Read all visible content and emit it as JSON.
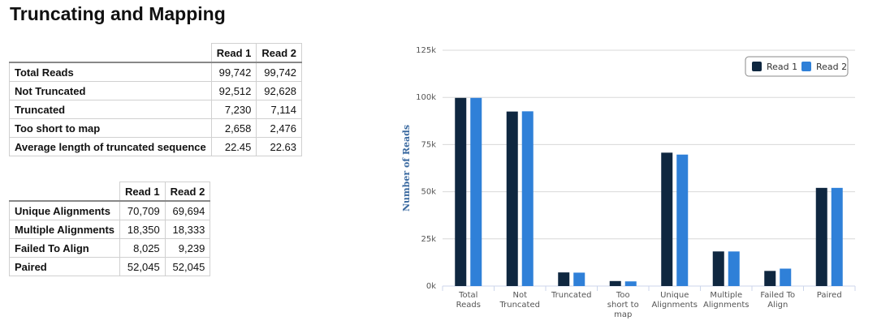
{
  "title": "Truncating and Mapping",
  "table1": {
    "headers": [
      "",
      "Read 1",
      "Read 2"
    ],
    "rows": [
      {
        "label": "Total Reads",
        "r1": "99,742",
        "r2": "99,742"
      },
      {
        "label": "Not Truncated",
        "r1": "92,512",
        "r2": "92,628"
      },
      {
        "label": "Truncated",
        "r1": "7,230",
        "r2": "7,114"
      },
      {
        "label": "Too short to map",
        "r1": "2,658",
        "r2": "2,476"
      },
      {
        "label": "Average length of truncated sequence",
        "r1": "22.45",
        "r2": "22.63"
      }
    ]
  },
  "table2": {
    "headers": [
      "",
      "Read 1",
      "Read 2"
    ],
    "rows": [
      {
        "label": "Unique Alignments",
        "r1": "70,709",
        "r2": "69,694"
      },
      {
        "label": "Multiple Alignments",
        "r1": "18,350",
        "r2": "18,333"
      },
      {
        "label": "Failed To Align",
        "r1": "8,025",
        "r2": "9,239"
      },
      {
        "label": "Paired",
        "r1": "52,045",
        "r2": "52,045"
      }
    ]
  },
  "chart_data": {
    "type": "bar",
    "title": "",
    "xlabel": "",
    "ylabel": "Number of Reads",
    "ylim": [
      0,
      125000
    ],
    "yticks": [
      0,
      25000,
      50000,
      75000,
      100000,
      125000
    ],
    "ytick_labels": [
      "0k",
      "25k",
      "50k",
      "75k",
      "100k",
      "125k"
    ],
    "categories": [
      [
        "Total",
        "Reads"
      ],
      [
        "Not",
        "Truncated"
      ],
      [
        "Truncated"
      ],
      [
        "Too",
        "short to",
        "map"
      ],
      [
        "Unique",
        "Alignments"
      ],
      [
        "Multiple",
        "Alignments"
      ],
      [
        "Failed To",
        "Align"
      ],
      [
        "Paired"
      ]
    ],
    "series": [
      {
        "name": "Read 1",
        "color": "#0f2740",
        "values": [
          99742,
          92512,
          7230,
          2658,
          70709,
          18350,
          8025,
          52045
        ]
      },
      {
        "name": "Read 2",
        "color": "#2f80d8",
        "values": [
          99742,
          92628,
          7114,
          2476,
          69694,
          18333,
          9239,
          52045
        ]
      }
    ],
    "grid": true,
    "legend": "top-right"
  }
}
